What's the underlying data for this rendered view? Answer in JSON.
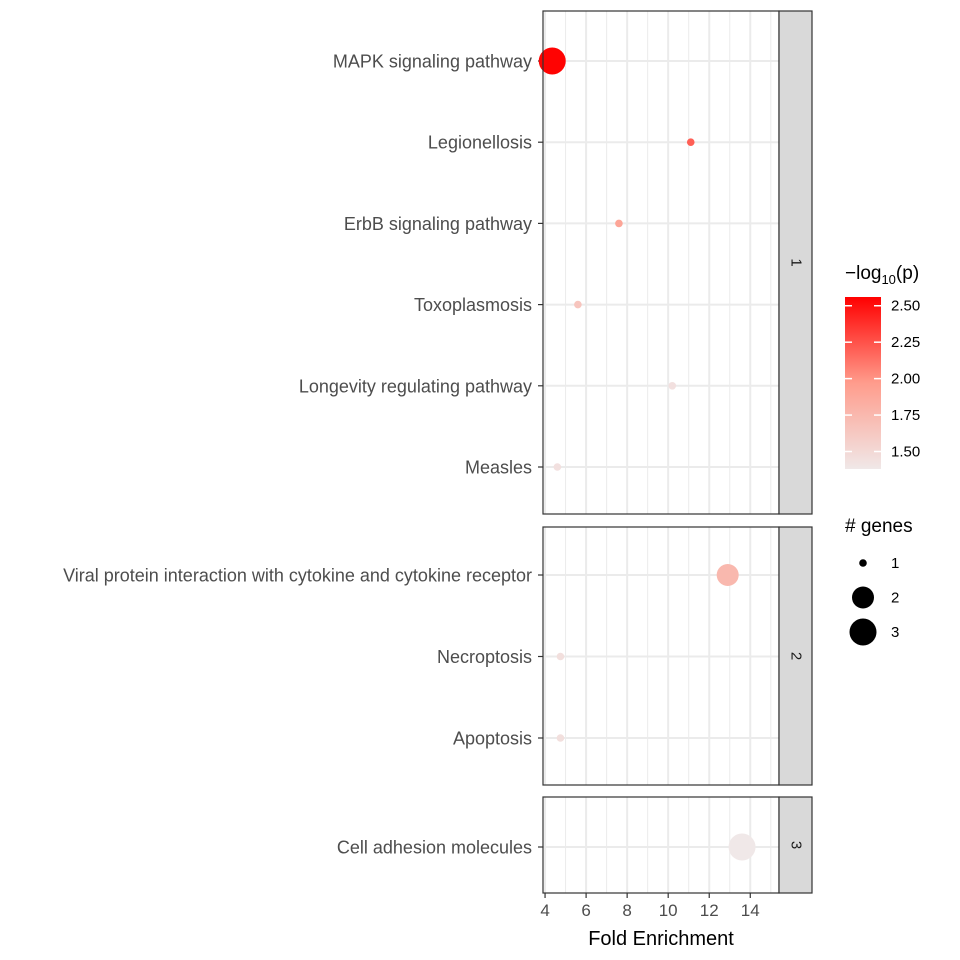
{
  "chart_data": {
    "type": "scatter",
    "xlabel": "Fold Enrichment",
    "xlim": [
      3.9,
      15.4
    ],
    "xticks": [
      "4",
      "6",
      "8",
      "10",
      "12",
      "14"
    ],
    "panels": [
      {
        "strip": "1",
        "rows": [
          {
            "term": "MAPK signaling pathway",
            "x": 4.35,
            "genes": 3,
            "neglog10p": 2.55
          },
          {
            "term": "Legionellosis",
            "x": 11.1,
            "genes": 1,
            "neglog10p": 2.2
          },
          {
            "term": "ErbB signaling pathway",
            "x": 7.6,
            "genes": 1,
            "neglog10p": 1.9
          },
          {
            "term": "Toxoplasmosis",
            "x": 5.6,
            "genes": 1,
            "neglog10p": 1.65
          },
          {
            "term": "Longevity regulating pathway",
            "x": 10.2,
            "genes": 1,
            "neglog10p": 1.44
          },
          {
            "term": "Measles",
            "x": 4.6,
            "genes": 1,
            "neglog10p": 1.44
          }
        ]
      },
      {
        "strip": "2",
        "rows": [
          {
            "term": "Viral protein interaction with cytokine and cytokine receptor",
            "x": 12.9,
            "genes": 2,
            "neglog10p": 1.75
          },
          {
            "term": "Necroptosis",
            "x": 4.75,
            "genes": 1,
            "neglog10p": 1.45
          },
          {
            "term": "Apoptosis",
            "x": 4.75,
            "genes": 1,
            "neglog10p": 1.45
          }
        ]
      },
      {
        "strip": "3",
        "rows": [
          {
            "term": "Cell adhesion molecules",
            "x": 13.6,
            "genes": 3,
            "neglog10p": 1.38
          }
        ]
      }
    ],
    "color_legend": {
      "title_main": "−log",
      "title_sub": "10",
      "title_tail": "(p)",
      "range": [
        1.38,
        2.56
      ],
      "ticks": [
        "1.50",
        "1.75",
        "2.00",
        "2.25",
        "2.50"
      ],
      "low_color": "#f0e8e8",
      "high_color": "#ff0000"
    },
    "size_legend": {
      "title": "# genes",
      "labels": [
        "1",
        "2",
        "3"
      ]
    },
    "colors": {
      "grid": "#ebebeb",
      "strip_fill": "#d9d9d9",
      "text": "#4d4d4d"
    }
  }
}
